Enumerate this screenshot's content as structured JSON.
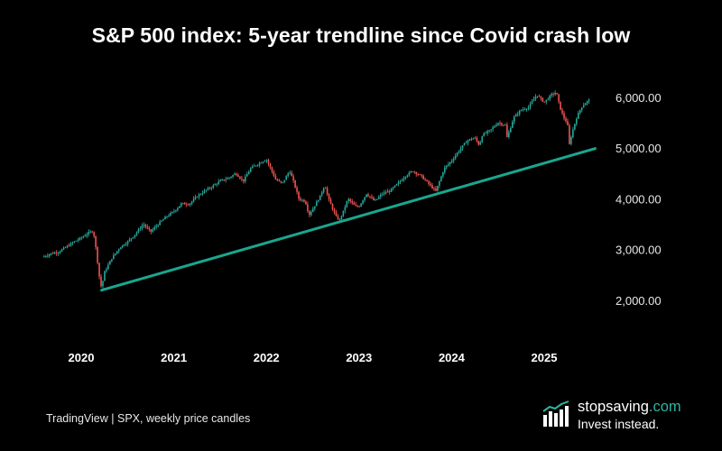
{
  "title": "S&P 500 index: 5-year trendline since Covid crash low",
  "source": "TradingView | SPX, weekly price candles",
  "logo": {
    "name_main": "stopsaving",
    "name_suffix": ".com",
    "tagline": "Invest instead."
  },
  "colors": {
    "background": "#000000",
    "up": "#26a69a",
    "down": "#ef5350",
    "trendline": "#1aa68e",
    "accent": "#2bb5a0"
  },
  "chart_data": {
    "type": "line",
    "title": "S&P 500 index: 5-year trendline since Covid crash low",
    "xlabel": "",
    "ylabel": "",
    "x_ticks": [
      "2020",
      "2021",
      "2022",
      "2023",
      "2024",
      "2025"
    ],
    "y_ticks": [
      "2,000.00",
      "3,000.00",
      "4,000.00",
      "5,000.00",
      "6,000.00"
    ],
    "ylim": [
      1700,
      6400
    ],
    "xlim": [
      2019.57,
      2025.55
    ],
    "grid": false,
    "series": [
      {
        "kind": "weekly_candles_close",
        "points": [
          [
            2019.58,
            2850
          ],
          [
            2019.67,
            2920
          ],
          [
            2019.75,
            2950
          ],
          [
            2019.83,
            3040
          ],
          [
            2019.92,
            3150
          ],
          [
            2020.0,
            3230
          ],
          [
            2020.08,
            3330
          ],
          [
            2020.13,
            3370
          ],
          [
            2020.16,
            3000
          ],
          [
            2020.2,
            2400
          ],
          [
            2020.22,
            2240
          ],
          [
            2020.25,
            2550
          ],
          [
            2020.33,
            2830
          ],
          [
            2020.42,
            3050
          ],
          [
            2020.5,
            3150
          ],
          [
            2020.58,
            3300
          ],
          [
            2020.67,
            3500
          ],
          [
            2020.75,
            3350
          ],
          [
            2020.83,
            3500
          ],
          [
            2020.92,
            3650
          ],
          [
            2021.0,
            3750
          ],
          [
            2021.08,
            3900
          ],
          [
            2021.17,
            3900
          ],
          [
            2021.25,
            4050
          ],
          [
            2021.33,
            4150
          ],
          [
            2021.42,
            4250
          ],
          [
            2021.5,
            4350
          ],
          [
            2021.58,
            4400
          ],
          [
            2021.67,
            4500
          ],
          [
            2021.75,
            4350
          ],
          [
            2021.83,
            4600
          ],
          [
            2021.92,
            4700
          ],
          [
            2022.0,
            4780
          ],
          [
            2022.05,
            4580
          ],
          [
            2022.1,
            4380
          ],
          [
            2022.17,
            4300
          ],
          [
            2022.25,
            4550
          ],
          [
            2022.3,
            4300
          ],
          [
            2022.35,
            4000
          ],
          [
            2022.42,
            3950
          ],
          [
            2022.46,
            3680
          ],
          [
            2022.5,
            3800
          ],
          [
            2022.58,
            4050
          ],
          [
            2022.63,
            4280
          ],
          [
            2022.67,
            4000
          ],
          [
            2022.75,
            3650
          ],
          [
            2022.79,
            3580
          ],
          [
            2022.83,
            3750
          ],
          [
            2022.88,
            4000
          ],
          [
            2022.96,
            3850
          ],
          [
            2023.0,
            3850
          ],
          [
            2023.08,
            4100
          ],
          [
            2023.17,
            3950
          ],
          [
            2023.25,
            4100
          ],
          [
            2023.33,
            4150
          ],
          [
            2023.42,
            4300
          ],
          [
            2023.5,
            4450
          ],
          [
            2023.58,
            4550
          ],
          [
            2023.67,
            4450
          ],
          [
            2023.75,
            4300
          ],
          [
            2023.83,
            4150
          ],
          [
            2023.88,
            4400
          ],
          [
            2023.92,
            4600
          ],
          [
            2024.0,
            4750
          ],
          [
            2024.08,
            4950
          ],
          [
            2024.17,
            5150
          ],
          [
            2024.25,
            5200
          ],
          [
            2024.3,
            5050
          ],
          [
            2024.33,
            5250
          ],
          [
            2024.42,
            5350
          ],
          [
            2024.5,
            5500
          ],
          [
            2024.58,
            5450
          ],
          [
            2024.6,
            5200
          ],
          [
            2024.67,
            5600
          ],
          [
            2024.75,
            5750
          ],
          [
            2024.83,
            5800
          ],
          [
            2024.92,
            6050
          ],
          [
            2025.0,
            5900
          ],
          [
            2025.08,
            6050
          ],
          [
            2025.13,
            6100
          ],
          [
            2025.17,
            5800
          ],
          [
            2025.21,
            5600
          ],
          [
            2025.25,
            5500
          ],
          [
            2025.27,
            5050
          ],
          [
            2025.3,
            5300
          ],
          [
            2025.35,
            5600
          ],
          [
            2025.4,
            5800
          ],
          [
            2025.45,
            5900
          ],
          [
            2025.5,
            5950
          ]
        ]
      },
      {
        "kind": "trendline",
        "points": [
          [
            2020.22,
            2200
          ],
          [
            2025.55,
            4990
          ]
        ]
      }
    ]
  }
}
